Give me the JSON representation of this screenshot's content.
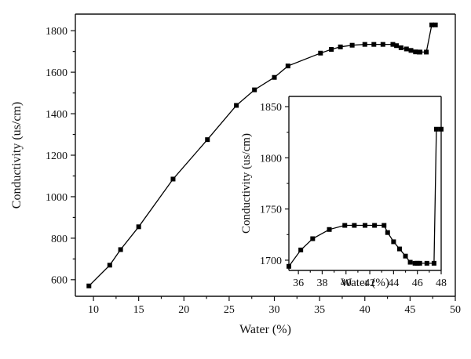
{
  "chart_data": [
    {
      "type": "line",
      "title": "",
      "xlabel": "Water (%)",
      "ylabel": "Conductivity (us/cm)",
      "xlim": [
        8,
        50
      ],
      "ylim": [
        520,
        1880
      ],
      "xticks": [
        10,
        15,
        20,
        25,
        30,
        35,
        40,
        45,
        50
      ],
      "yticks": [
        600,
        800,
        1000,
        1200,
        1400,
        1600,
        1800
      ],
      "grid": false,
      "series": [
        {
          "x": [
            9.5,
            11.8,
            13.0,
            15.0,
            18.8,
            22.6,
            25.8,
            27.8,
            30.0,
            31.5,
            35.1,
            36.3,
            37.3,
            38.6,
            40.0,
            41.0,
            42.0,
            43.1,
            43.5,
            44.0,
            44.6,
            45.1,
            45.6,
            46.0,
            46.1,
            46.8,
            47.4,
            47.8
          ],
          "y": [
            570,
            670,
            745,
            855,
            1085,
            1275,
            1440,
            1515,
            1575,
            1630,
            1692,
            1710,
            1722,
            1730,
            1734,
            1734,
            1734,
            1734,
            1728,
            1718,
            1712,
            1705,
            1698,
            1697,
            1697,
            1697,
            1828,
            1828
          ]
        }
      ]
    },
    {
      "type": "line",
      "title": "",
      "xlabel": "Water (%)",
      "ylabel": "Conductivity (us/cm)",
      "xlim": [
        35.2,
        48
      ],
      "ylim": [
        1690,
        1860
      ],
      "xticks": [
        36,
        38,
        40,
        42,
        44,
        46,
        48
      ],
      "yticks": [
        1700,
        1750,
        1800,
        1850
      ],
      "grid": false,
      "series": [
        {
          "x": [
            35.2,
            36.2,
            37.2,
            38.6,
            39.9,
            40.7,
            41.6,
            42.4,
            43.2,
            43.5,
            44.0,
            44.5,
            45.0,
            45.4,
            45.8,
            46.0,
            46.2,
            46.8,
            47.4,
            47.6,
            48.0
          ],
          "y": [
            1694,
            1710,
            1721,
            1730,
            1734,
            1734,
            1734,
            1734,
            1734,
            1727,
            1718,
            1711,
            1704,
            1698,
            1697,
            1697,
            1697,
            1697,
            1697,
            1828,
            1828
          ]
        }
      ]
    }
  ]
}
